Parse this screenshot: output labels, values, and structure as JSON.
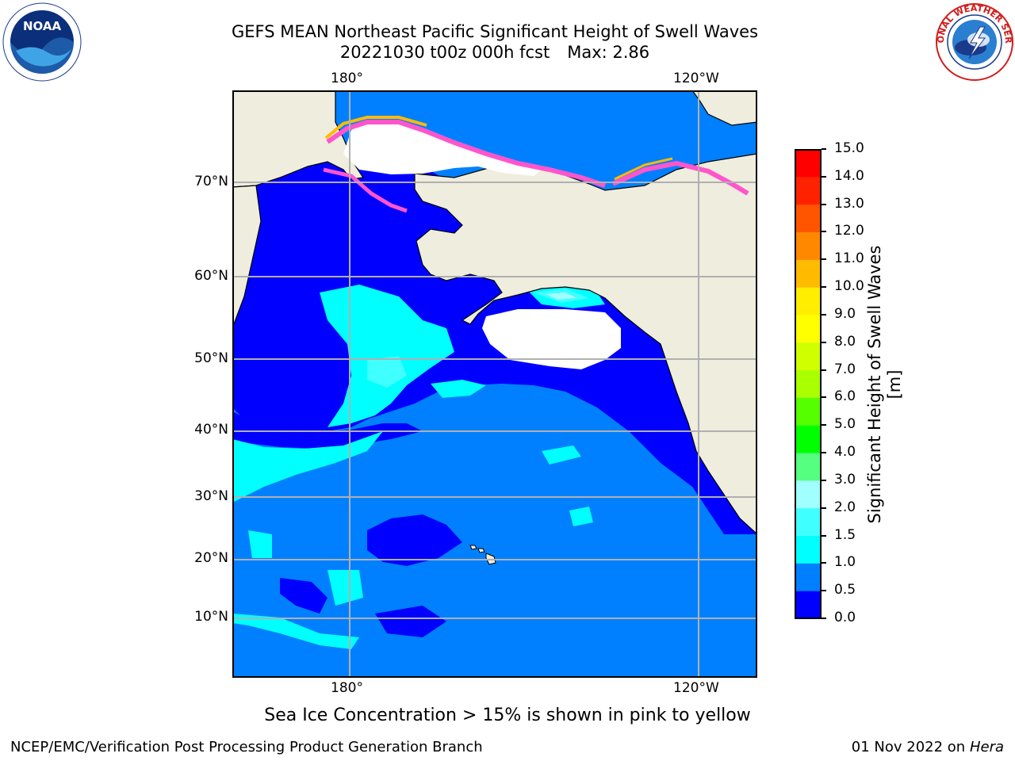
{
  "header": {
    "title_line1": "GEFS MEAN Northeast Pacific Significant Height of Swell Waves",
    "title_date": "20221030 t00z 000h fcst",
    "title_max": "Max: 2.86"
  },
  "logos": {
    "left": "NOAA",
    "right": "NATIONAL WEATHER SERVICE"
  },
  "map": {
    "lon_labels": [
      "180°",
      "120°W"
    ],
    "lat_labels": [
      "70°N",
      "60°N",
      "50°N",
      "40°N",
      "30°N",
      "20°N",
      "10°N"
    ],
    "land_color": "#eeedde",
    "ice_note": "Sea Ice Concentration > 15% is shown in pink to yellow"
  },
  "colorbar": {
    "label": "Significant Height of Swell Waves [m]",
    "ticks": [
      "15.0",
      "14.0",
      "13.0",
      "12.0",
      "11.0",
      "10.0",
      "9.0",
      "8.0",
      "7.0",
      "6.0",
      "5.0",
      "4.0",
      "3.0",
      "2.0",
      "1.5",
      "1.0",
      "0.5",
      "0.0"
    ],
    "colors_bottom_to_top": [
      "#0000ff",
      "#0080ff",
      "#00ffff",
      "#40ffff",
      "#a0ffff",
      "#55ff80",
      "#00ff00",
      "#55ff00",
      "#aaff00",
      "#d0ff00",
      "#ffff00",
      "#ffee00",
      "#ffbb00",
      "#ff8800",
      "#ff5500",
      "#ff2200",
      "#ff0000"
    ]
  },
  "footer": {
    "left": "NCEP/EMC/Verification Post Processing Product Generation Branch",
    "right_date": "01 Nov 2022 on",
    "right_host": "Hera"
  }
}
